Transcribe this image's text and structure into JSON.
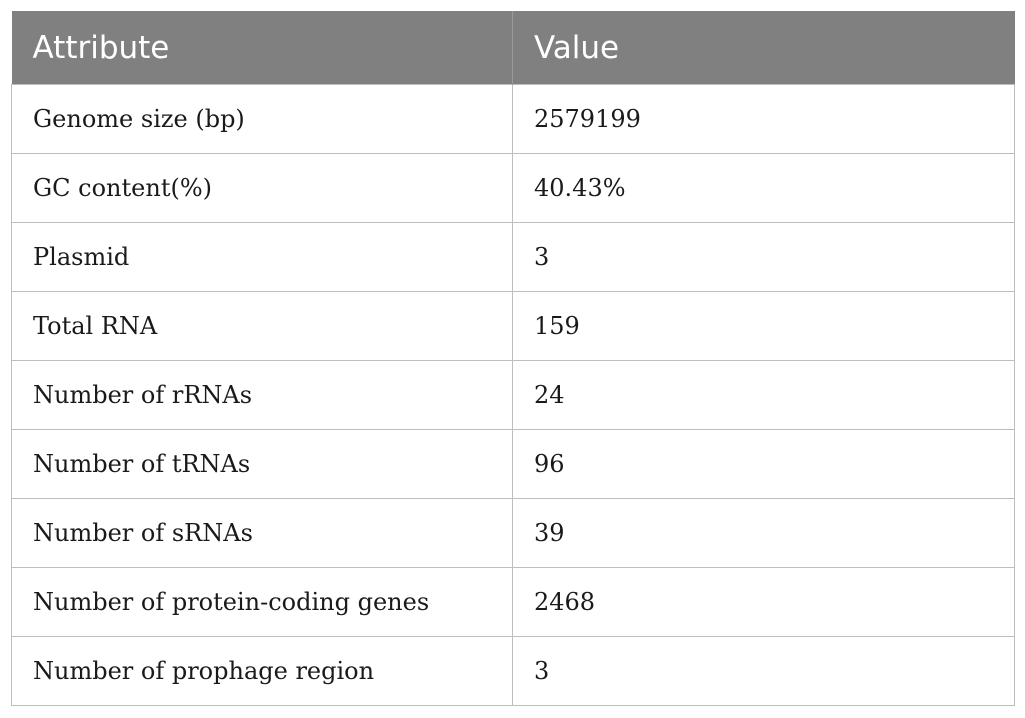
{
  "table": {
    "headers": [
      "Attribute",
      "Value"
    ],
    "rows": [
      [
        "Genome size (bp)",
        "2579199"
      ],
      [
        "GC content(%)",
        "40.43%"
      ],
      [
        "Plasmid",
        "3"
      ],
      [
        "Total RNA",
        "159"
      ],
      [
        "Number of rRNAs",
        "24"
      ],
      [
        "Number of tRNAs",
        "96"
      ],
      [
        "Number of sRNAs",
        "39"
      ],
      [
        "Number of protein-coding genes",
        "2468"
      ],
      [
        "Number of prophage region",
        "3"
      ]
    ]
  }
}
